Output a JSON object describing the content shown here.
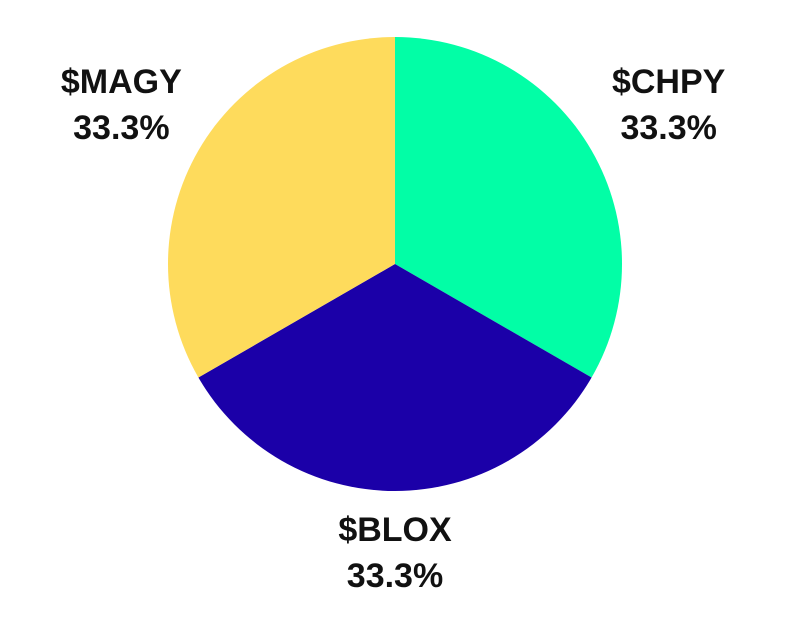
{
  "chart_data": {
    "type": "pie",
    "categories": [
      "$CHPY",
      "$BLOX",
      "$MAGY"
    ],
    "values": [
      33.3,
      33.3,
      33.3
    ],
    "value_labels": [
      "33.3%",
      "33.3%",
      "33.3%"
    ],
    "colors": [
      "#02fea6",
      "#1b00a8",
      "#fedb5c"
    ]
  }
}
